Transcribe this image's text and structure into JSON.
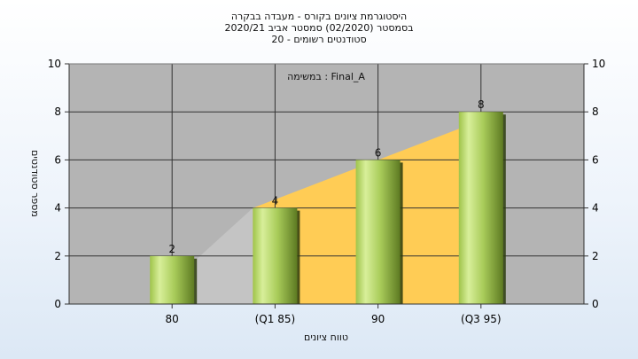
{
  "chart_data": {
    "type": "bar",
    "title_lines": [
      "היסטוגרמת ציונים בקורס - מעבדה בבקרה",
      "בסמסטר  (02/2020)  סמסטר אביב 2020/21",
      "סטודנטים רשומים - 20"
    ],
    "annotation": "במשימה : Final_A",
    "categories": [
      "80",
      "(Q1 85)",
      "90",
      "(Q3 95)"
    ],
    "values": [
      2,
      4,
      6,
      8
    ],
    "ylabel": "מספר סטודנטים",
    "xlabel": "טווח ציונים",
    "ylim": [
      0,
      10
    ],
    "yticks": [
      0,
      2,
      4,
      6,
      8,
      10
    ],
    "grid": true,
    "colors": {
      "plot_background": "#b4b4b4",
      "bar_light": "#d8ef9a",
      "bar_dark": "#5d7a22",
      "quartile_area": "#ffcc55",
      "lower_area": "#c4c4c4"
    }
  }
}
